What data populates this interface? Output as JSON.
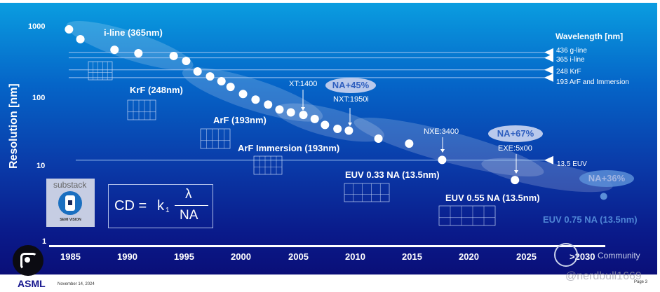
{
  "chart_data": {
    "type": "scatter",
    "title": "",
    "ylabel": "Resolution [nm]",
    "xlabel": "",
    "yscale": "log",
    "ylim": [
      1,
      1000
    ],
    "xlim": [
      1985,
      2030
    ],
    "y_ticks": [
      "1000",
      "100",
      "10",
      "1"
    ],
    "x_ticks": [
      "1985",
      "1990",
      "1995",
      "2000",
      "2005",
      "2010",
      "2015",
      "2020",
      "2025",
      ">2030"
    ],
    "points": [
      {
        "year": 1984.9,
        "res": 915
      },
      {
        "year": 1985.9,
        "res": 667
      },
      {
        "year": 1988.9,
        "res": 474
      },
      {
        "year": 1991.0,
        "res": 424
      },
      {
        "year": 1994.1,
        "res": 388
      },
      {
        "year": 1995.2,
        "res": 331
      },
      {
        "year": 1996.2,
        "res": 236
      },
      {
        "year": 1997.3,
        "res": 201
      },
      {
        "year": 1998.3,
        "res": 172
      },
      {
        "year": 1999.1,
        "res": 143
      },
      {
        "year": 2000.2,
        "res": 114
      },
      {
        "year": 2001.3,
        "res": 95
      },
      {
        "year": 2002.4,
        "res": 81
      },
      {
        "year": 2003.4,
        "res": 69
      },
      {
        "year": 2004.4,
        "res": 63
      },
      {
        "year": 2005.5,
        "res": 58
      },
      {
        "year": 2006.5,
        "res": 51
      },
      {
        "year": 2007.4,
        "res": 42
      },
      {
        "year": 2008.5,
        "res": 37
      },
      {
        "year": 2009.5,
        "res": 35
      },
      {
        "year": 2012.1,
        "res": 27
      },
      {
        "year": 2014.8,
        "res": 23
      },
      {
        "year": 2017.7,
        "res": 13.6
      },
      {
        "year": 2024.1,
        "res": 7.1
      },
      {
        "year": 2031.9,
        "res": 4.2,
        "future": true
      }
    ],
    "wavelength_title": "Wavelength [nm]",
    "wavelengths": [
      {
        "value": 436,
        "label": "436 g-line"
      },
      {
        "value": 365,
        "label": "365 i-line"
      },
      {
        "value": 248,
        "label": "248 KrF"
      },
      {
        "value": 193,
        "label": "193 ArF and Immersion"
      },
      {
        "value": 13.5,
        "label": "13.5 EUV"
      }
    ],
    "technologies": [
      "i-line (365nm)",
      "KrF (248nm)",
      "ArF (193nm)",
      "ArF Immersion (193nm)",
      "EUV 0.33 NA (13.5nm)",
      "EUV 0.55 NA (13.5nm)",
      "EUV 0.75 NA (13.5nm)"
    ],
    "machines": [
      "XT:1400",
      "NXT:1950i",
      "NXE:3400",
      "EXE:5x00"
    ],
    "na_badges": [
      "NA+45%",
      "NA+67%",
      "NA+36%"
    ],
    "colors": {
      "dot": "#ffffff",
      "future_dot": "#5b8fd8",
      "band": "#ffffff",
      "bubble": "#b9c9ec",
      "bubble_text": "#2f5fbf"
    }
  },
  "formula": {
    "lhs": "CD =",
    "k": "k",
    "sub": "1",
    "num": "λ",
    "den": "NA"
  },
  "substack": {
    "brand": "substack",
    "name": "SEMI VISION"
  },
  "footer": {
    "logo": "ASML",
    "date": "November 14, 2024",
    "page": "Page 3",
    "watermark": "@nerdbull1669",
    "community": "Community"
  }
}
